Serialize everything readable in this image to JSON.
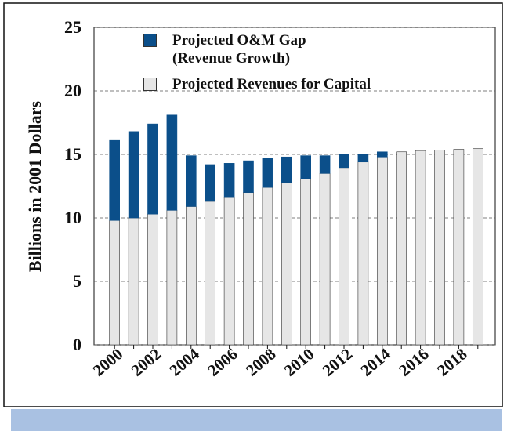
{
  "chart_data": {
    "type": "stacked_bar",
    "ylabel": "Billions in 2001 Dollars",
    "categories": [
      "2000",
      null,
      "2002",
      null,
      "2004",
      null,
      "2006",
      null,
      "2008",
      null,
      "2010",
      null,
      "2012",
      null,
      "2014",
      null,
      "2016",
      null,
      "2018",
      null
    ],
    "series": [
      {
        "name": "Projected Revenues for Capital",
        "color": "#e6e6e6",
        "values": [
          9.8,
          10.0,
          10.3,
          10.6,
          10.9,
          11.3,
          11.6,
          12.0,
          12.4,
          12.8,
          13.1,
          13.5,
          13.9,
          14.4,
          14.8,
          15.2,
          15.3,
          15.35,
          15.4,
          15.45
        ]
      },
      {
        "name": "Projected O&M Gap\n(Revenue Growth)",
        "color": "#0b4f8a",
        "values": [
          6.3,
          6.8,
          7.1,
          7.5,
          4.0,
          2.9,
          2.7,
          2.5,
          2.3,
          2.0,
          1.8,
          1.4,
          1.1,
          0.6,
          0.4,
          0,
          0,
          0,
          0,
          0
        ]
      }
    ],
    "ylim": [
      0,
      25
    ],
    "yticks": [
      0,
      5,
      10,
      15,
      20,
      25
    ],
    "grid": true,
    "legend": "top"
  }
}
